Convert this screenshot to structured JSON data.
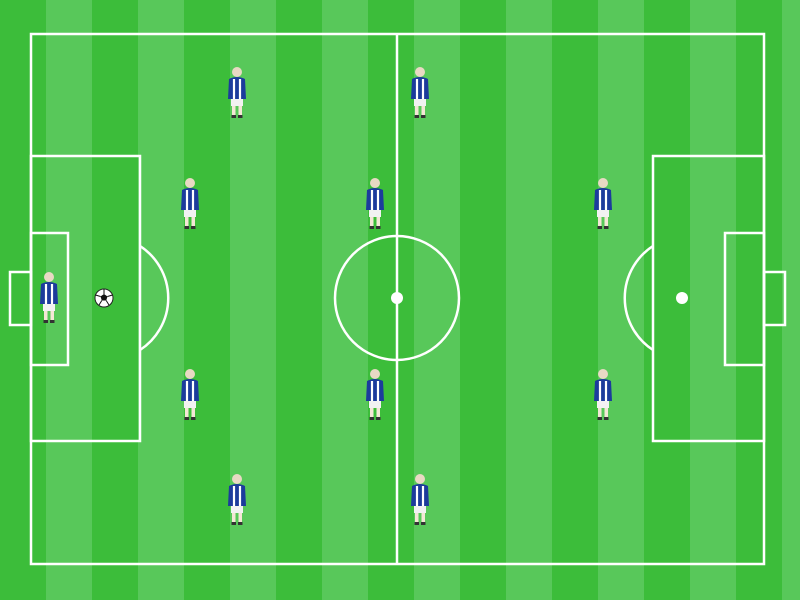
{
  "game": {
    "type": "football-formation-board",
    "formation": "4-4-2",
    "team_kit_color": "#1c3b9c",
    "pitch_color": "#3cbd3a",
    "line_color": "#ffffff"
  },
  "players": [
    {
      "role": "goalkeeper"
    },
    {
      "role": "defender"
    },
    {
      "role": "defender"
    },
    {
      "role": "defender"
    },
    {
      "role": "defender"
    },
    {
      "role": "midfielder"
    },
    {
      "role": "midfielder"
    },
    {
      "role": "midfielder"
    },
    {
      "role": "midfielder"
    },
    {
      "role": "forward"
    },
    {
      "role": "forward"
    }
  ],
  "ball": {
    "icon": "soccer-ball-icon"
  }
}
